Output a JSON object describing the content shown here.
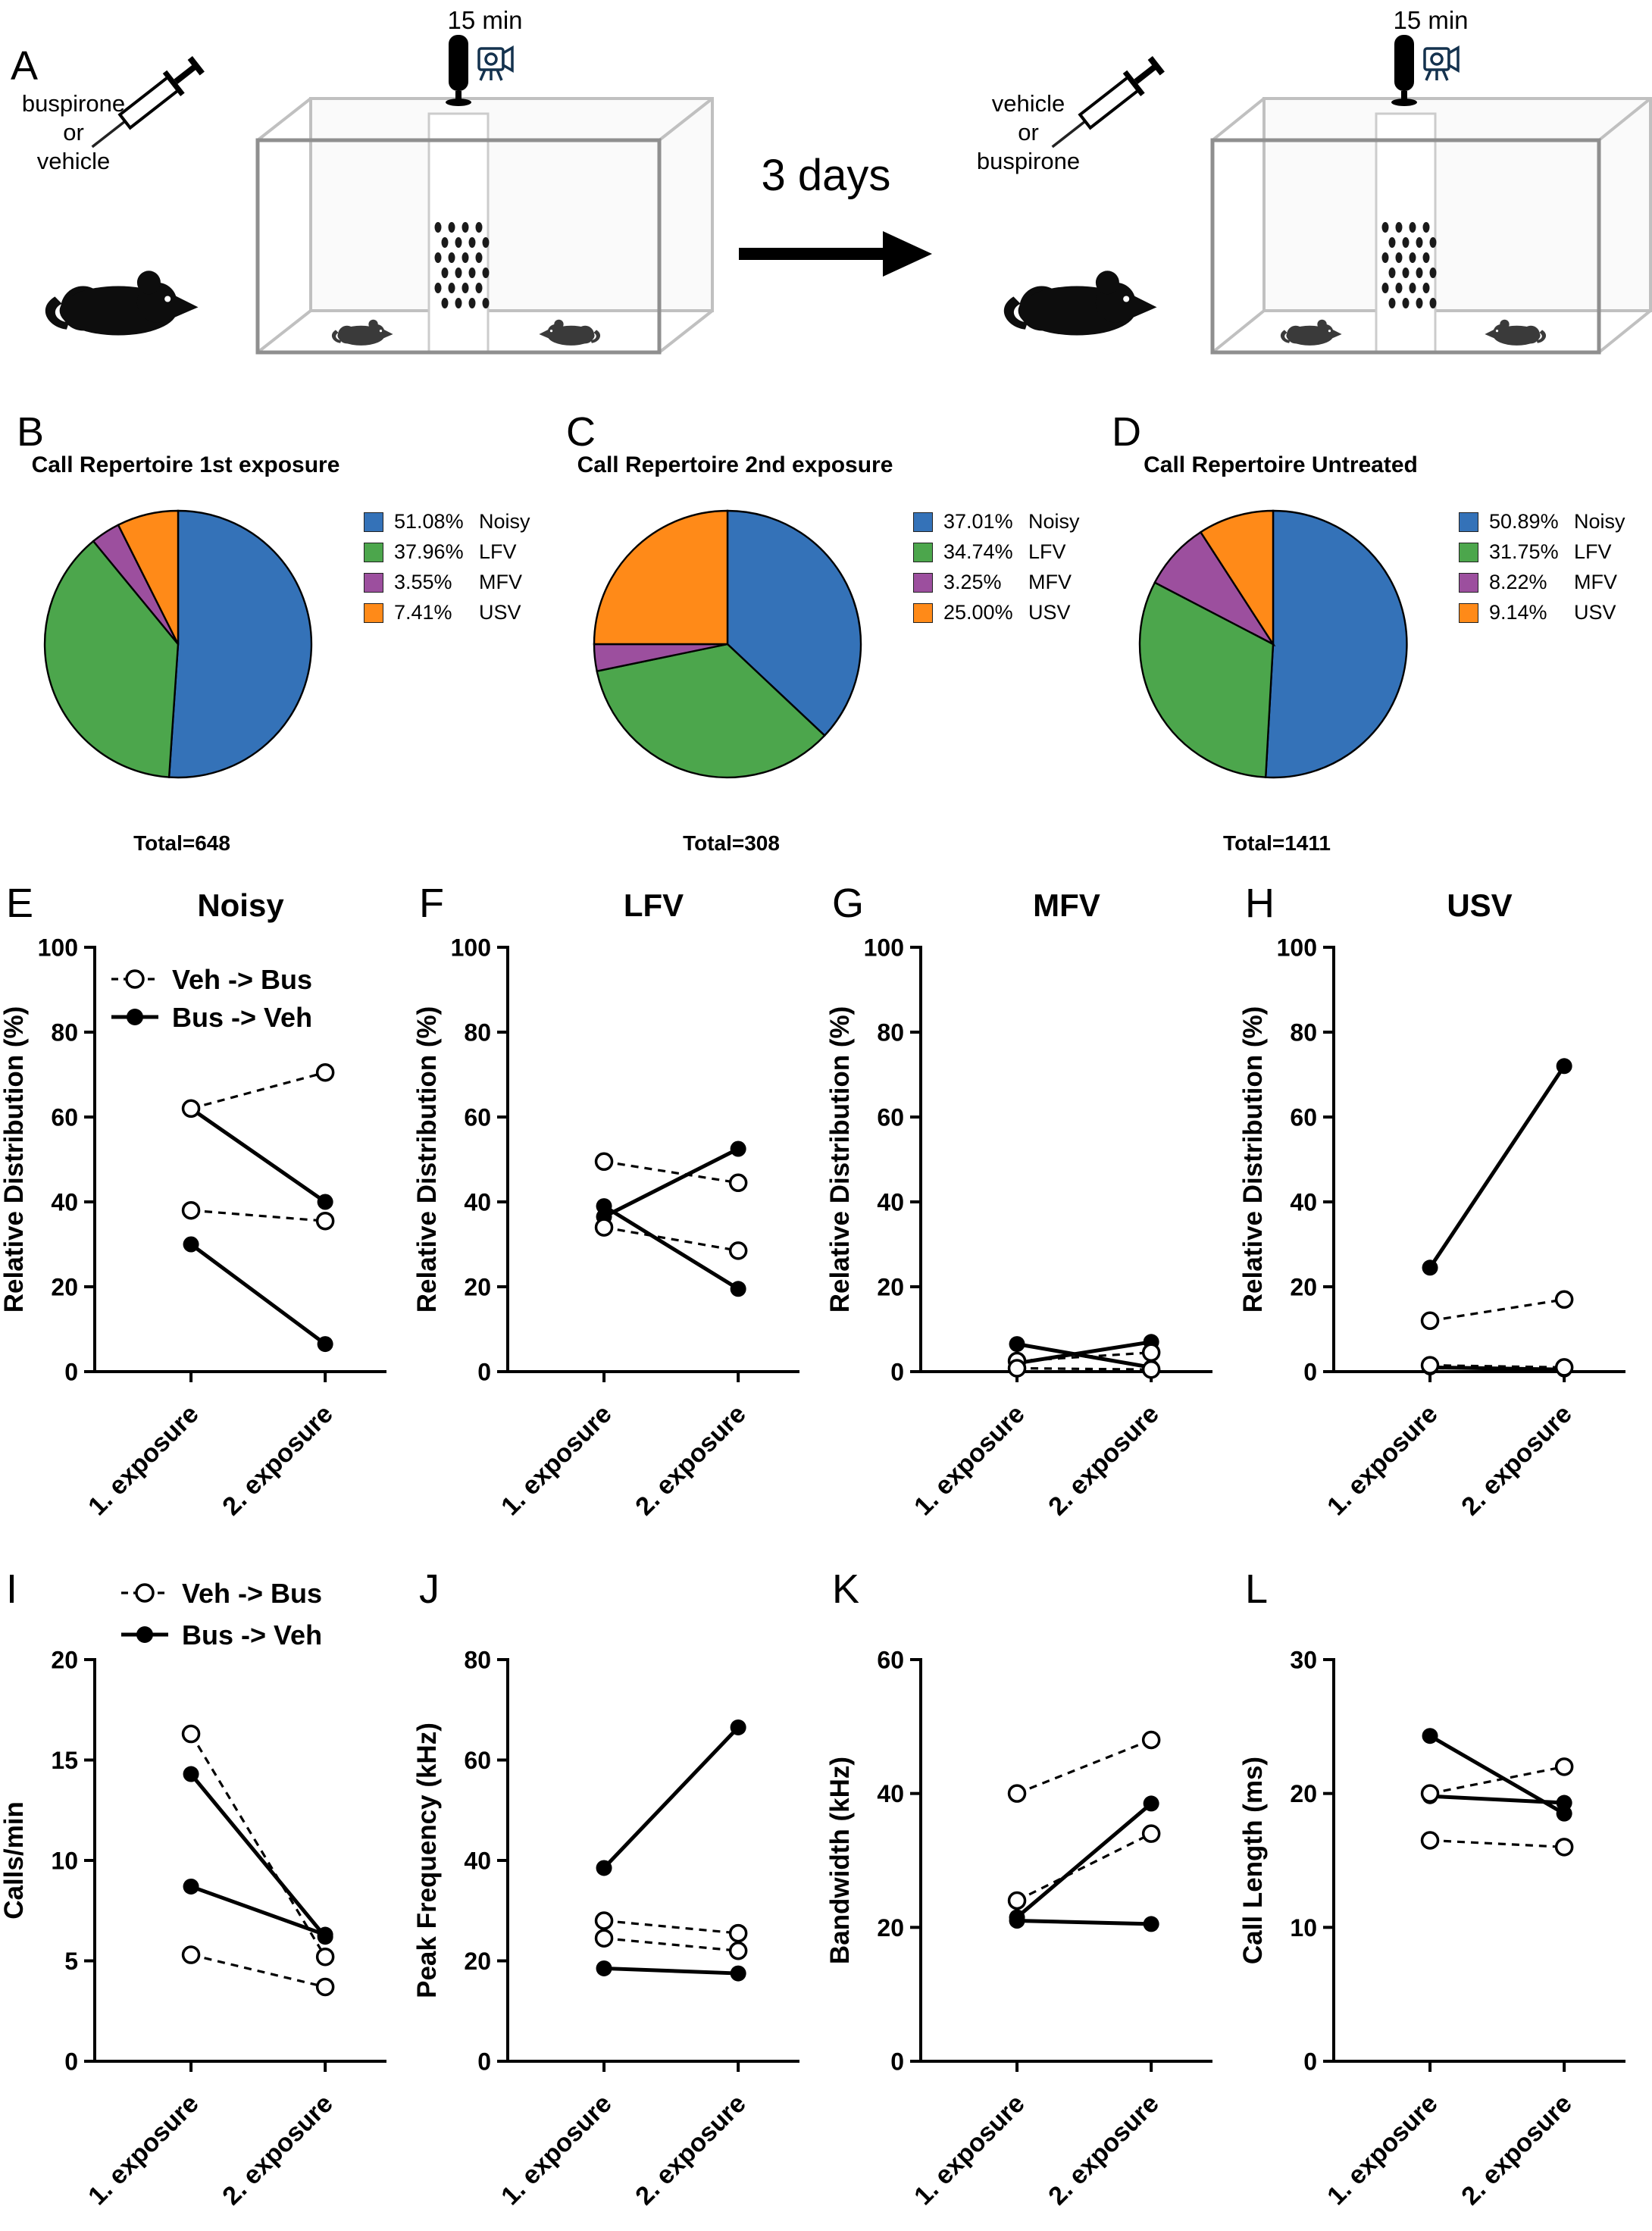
{
  "panels": {
    "A": "A",
    "B": "B",
    "C": "C",
    "D": "D",
    "E": "E",
    "F": "F",
    "G": "G",
    "H": "H",
    "I": "I",
    "J": "J",
    "K": "K",
    "L": "L"
  },
  "schematic": {
    "left_drug_lines": [
      "buspirone",
      "or",
      "vehicle"
    ],
    "right_drug_lines": [
      "vehicle",
      "or",
      "buspirone"
    ],
    "duration_left": "15 min",
    "duration_right": "15 min",
    "interval": "3 days"
  },
  "chart_data": [
    {
      "id": "pieB",
      "panel": "B",
      "type": "pie",
      "title": "Call Repertoire 1st exposure",
      "total": "Total=648",
      "slices": [
        {
          "value": 51.08,
          "pct_label": "51.08%",
          "label": "Noisy",
          "color": "#3472B8"
        },
        {
          "value": 37.96,
          "pct_label": "37.96%",
          "label": "LFV",
          "color": "#4CA64C"
        },
        {
          "value": 3.55,
          "pct_label": "3.55%",
          "label": "MFV",
          "color": "#9C4F9E"
        },
        {
          "value": 7.41,
          "pct_label": "7.41%",
          "label": "USV",
          "color": "#FF8A18"
        }
      ]
    },
    {
      "id": "pieC",
      "panel": "C",
      "type": "pie",
      "title": "Call Repertoire 2nd exposure",
      "total": "Total=308",
      "slices": [
        {
          "value": 37.01,
          "pct_label": "37.01%",
          "label": "Noisy",
          "color": "#3472B8"
        },
        {
          "value": 34.74,
          "pct_label": "34.74%",
          "label": "LFV",
          "color": "#4CA64C"
        },
        {
          "value": 3.25,
          "pct_label": "3.25%",
          "label": "MFV",
          "color": "#9C4F9E"
        },
        {
          "value": 25.0,
          "pct_label": "25.00%",
          "label": "USV",
          "color": "#FF8A18"
        }
      ]
    },
    {
      "id": "pieD",
      "panel": "D",
      "type": "pie",
      "title": "Call Repertoire Untreated",
      "total": "Total=1411",
      "slices": [
        {
          "value": 50.89,
          "pct_label": "50.89%",
          "label": "Noisy",
          "color": "#3472B8"
        },
        {
          "value": 31.75,
          "pct_label": "31.75%",
          "label": "LFV",
          "color": "#4CA64C"
        },
        {
          "value": 8.22,
          "pct_label": "8.22%",
          "label": "MFV",
          "color": "#9C4F9E"
        },
        {
          "value": 9.14,
          "pct_label": "9.14%",
          "label": "USV",
          "color": "#FF8A18"
        }
      ]
    },
    {
      "id": "E",
      "panel": "E",
      "type": "line",
      "title": "Noisy",
      "ylabel": "Relative Distribution (%)",
      "ylim": [
        0,
        100
      ],
      "yticks": [
        0,
        20,
        40,
        60,
        80,
        100
      ],
      "categories": [
        "1. exposure",
        "2. exposure"
      ],
      "legend": "inside",
      "legend_items": [
        {
          "label": "Veh -> Bus",
          "marker": "open",
          "line": "dashed"
        },
        {
          "label": "Bus -> Veh",
          "marker": "filled",
          "line": "solid"
        }
      ],
      "series": [
        {
          "group": "Bus -> Veh",
          "marker": "filled",
          "line": "solid",
          "values": [
            62,
            40
          ]
        },
        {
          "group": "Bus -> Veh",
          "marker": "filled",
          "line": "solid",
          "values": [
            30,
            6.5
          ]
        },
        {
          "group": "Veh -> Bus",
          "marker": "open",
          "line": "dashed",
          "values": [
            62,
            70.5
          ]
        },
        {
          "group": "Veh -> Bus",
          "marker": "open",
          "line": "dashed",
          "values": [
            38,
            35.5
          ]
        }
      ]
    },
    {
      "id": "F",
      "panel": "F",
      "type": "line",
      "title": "LFV",
      "ylabel": "Relative Distribution (%)",
      "ylim": [
        0,
        100
      ],
      "yticks": [
        0,
        20,
        40,
        60,
        80,
        100
      ],
      "categories": [
        "1. exposure",
        "2. exposure"
      ],
      "legend": null,
      "series": [
        {
          "group": "Bus -> Veh",
          "marker": "filled",
          "line": "solid",
          "values": [
            36.5,
            52.5
          ]
        },
        {
          "group": "Bus -> Veh",
          "marker": "filled",
          "line": "solid",
          "values": [
            39,
            19.5
          ]
        },
        {
          "group": "Veh -> Bus",
          "marker": "open",
          "line": "dashed",
          "values": [
            49.5,
            44.5
          ]
        },
        {
          "group": "Veh -> Bus",
          "marker": "open",
          "line": "dashed",
          "values": [
            34,
            28.5
          ]
        }
      ]
    },
    {
      "id": "G",
      "panel": "G",
      "type": "line",
      "title": "MFV",
      "ylabel": "Relative Distribution (%)",
      "ylim": [
        0,
        100
      ],
      "yticks": [
        0,
        20,
        40,
        60,
        80,
        100
      ],
      "categories": [
        "1. exposure",
        "2. exposure"
      ],
      "legend": null,
      "series": [
        {
          "group": "Bus -> Veh",
          "marker": "filled",
          "line": "solid",
          "values": [
            2,
            7
          ]
        },
        {
          "group": "Bus -> Veh",
          "marker": "filled",
          "line": "solid",
          "values": [
            6.5,
            1
          ]
        },
        {
          "group": "Veh -> Bus",
          "marker": "open",
          "line": "dashed",
          "values": [
            2.5,
            4.5
          ]
        },
        {
          "group": "Veh -> Bus",
          "marker": "open",
          "line": "dashed",
          "values": [
            0.8,
            0.5
          ]
        }
      ]
    },
    {
      "id": "H",
      "panel": "H",
      "type": "line",
      "title": "USV",
      "ylabel": "Relative Distribution (%)",
      "ylim": [
        0,
        100
      ],
      "yticks": [
        0,
        20,
        40,
        60,
        80,
        100
      ],
      "categories": [
        "1. exposure",
        "2. exposure"
      ],
      "legend": null,
      "series": [
        {
          "group": "Bus -> Veh",
          "marker": "filled",
          "line": "solid",
          "values": [
            24.5,
            72
          ]
        },
        {
          "group": "Bus -> Veh",
          "marker": "filled",
          "line": "solid",
          "values": [
            1,
            0.5
          ]
        },
        {
          "group": "Veh -> Bus",
          "marker": "open",
          "line": "dashed",
          "values": [
            12,
            17
          ]
        },
        {
          "group": "Veh -> Bus",
          "marker": "open",
          "line": "dashed",
          "values": [
            1.5,
            1
          ]
        }
      ]
    },
    {
      "id": "I",
      "panel": "I",
      "type": "line",
      "title": null,
      "ylabel": "Calls/min",
      "ylim": [
        0,
        20
      ],
      "yticks": [
        0,
        5,
        10,
        15,
        20
      ],
      "categories": [
        "1. exposure",
        "2. exposure"
      ],
      "legend": "above",
      "legend_items": [
        {
          "label": "Veh -> Bus",
          "marker": "open",
          "line": "dashed"
        },
        {
          "label": "Bus -> Veh",
          "marker": "filled",
          "line": "solid"
        }
      ],
      "series": [
        {
          "group": "Bus -> Veh",
          "marker": "filled",
          "line": "solid",
          "values": [
            14.3,
            6.2
          ]
        },
        {
          "group": "Bus -> Veh",
          "marker": "filled",
          "line": "solid",
          "values": [
            8.7,
            6.3
          ]
        },
        {
          "group": "Veh -> Bus",
          "marker": "open",
          "line": "dashed",
          "values": [
            16.3,
            5.2
          ]
        },
        {
          "group": "Veh -> Bus",
          "marker": "open",
          "line": "dashed",
          "values": [
            5.3,
            3.7
          ]
        }
      ]
    },
    {
      "id": "J",
      "panel": "J",
      "type": "line",
      "title": null,
      "ylabel": "Peak Frequency (kHz)",
      "ylim": [
        0,
        80
      ],
      "yticks": [
        0,
        20,
        40,
        60,
        80
      ],
      "categories": [
        "1. exposure",
        "2. exposure"
      ],
      "legend": null,
      "series": [
        {
          "group": "Bus -> Veh",
          "marker": "filled",
          "line": "solid",
          "values": [
            38.5,
            66.5
          ]
        },
        {
          "group": "Bus -> Veh",
          "marker": "filled",
          "line": "solid",
          "values": [
            18.5,
            17.5
          ]
        },
        {
          "group": "Veh -> Bus",
          "marker": "open",
          "line": "dashed",
          "values": [
            28,
            25.5
          ]
        },
        {
          "group": "Veh -> Bus",
          "marker": "open",
          "line": "dashed",
          "values": [
            24.5,
            22
          ]
        }
      ]
    },
    {
      "id": "K",
      "panel": "K",
      "type": "line",
      "title": null,
      "ylabel": "Bandwidth (kHz)",
      "ylim": [
        0,
        60
      ],
      "yticks": [
        0,
        20,
        40,
        60
      ],
      "categories": [
        "1. exposure",
        "2. exposure"
      ],
      "legend": null,
      "series": [
        {
          "group": "Bus -> Veh",
          "marker": "filled",
          "line": "solid",
          "values": [
            21.5,
            38.5
          ]
        },
        {
          "group": "Bus -> Veh",
          "marker": "filled",
          "line": "solid",
          "values": [
            21,
            20.5
          ]
        },
        {
          "group": "Veh -> Bus",
          "marker": "open",
          "line": "dashed",
          "values": [
            40,
            48
          ]
        },
        {
          "group": "Veh -> Bus",
          "marker": "open",
          "line": "dashed",
          "values": [
            24,
            34
          ]
        }
      ]
    },
    {
      "id": "L",
      "panel": "L",
      "type": "line",
      "title": null,
      "ylabel": "Call Length (ms)",
      "ylim": [
        0,
        30
      ],
      "yticks": [
        0,
        10,
        20,
        30
      ],
      "categories": [
        "1. exposure",
        "2. exposure"
      ],
      "legend": null,
      "series": [
        {
          "group": "Bus -> Veh",
          "marker": "filled",
          "line": "solid",
          "values": [
            24.3,
            18.5
          ]
        },
        {
          "group": "Bus -> Veh",
          "marker": "filled",
          "line": "solid",
          "values": [
            19.8,
            19.3
          ]
        },
        {
          "group": "Veh -> Bus",
          "marker": "open",
          "line": "dashed",
          "values": [
            20,
            22
          ]
        },
        {
          "group": "Veh -> Bus",
          "marker": "open",
          "line": "dashed",
          "values": [
            16.5,
            16
          ]
        }
      ]
    }
  ]
}
